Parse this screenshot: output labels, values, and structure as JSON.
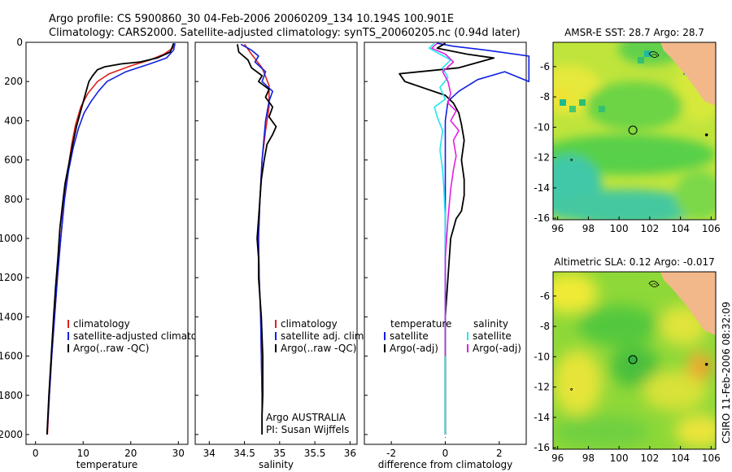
{
  "header": {
    "line1": "Argo profile: CS 5900860_30 04-Feb-2006 20060209_134 10.194S 100.901E",
    "line2": "Climatology: CARS2000. Satellite-adjusted climatology: synTS_20060205.nc (0.94d later)"
  },
  "footer": {
    "stamp": "CSIRO 11-Feb-2006 08:32:09"
  },
  "colors": {
    "red": "#e0201a",
    "blue": "#1020e0",
    "black": "#000000",
    "cyan": "#22e6f0",
    "magenta": "#e020e0"
  },
  "chart_data": [
    {
      "type": "line",
      "name": "temperature-panel",
      "xlabel": "temperature",
      "ylabel": "",
      "xlim": [
        -2,
        32
      ],
      "ylim": [
        2050,
        0
      ],
      "xticks": [
        0,
        10,
        20,
        30
      ],
      "xticklabels": [
        "0",
        "10",
        "20",
        "30"
      ],
      "yticks": [
        0,
        200,
        400,
        600,
        800,
        1000,
        1200,
        1400,
        1600,
        1800,
        2000
      ],
      "yticklabels": [
        "0",
        "200",
        "400",
        "600",
        "800",
        "1000",
        "1200",
        "1400",
        "1600",
        "1800",
        "2000"
      ],
      "legend": [
        "climatology",
        "satellite-adjusted climatology",
        "Argo(..raw -QC)"
      ],
      "legend_colors": [
        "#e0201a",
        "#1020e0",
        "#000000"
      ],
      "series": [
        {
          "name": "climatology",
          "color": "#e0201a",
          "points": [
            [
              29,
              5
            ],
            [
              28.8,
              30
            ],
            [
              27,
              60
            ],
            [
              24,
              90
            ],
            [
              20,
              120
            ],
            [
              15.5,
              160
            ],
            [
              13,
              200
            ],
            [
              11,
              260
            ],
            [
              9.5,
              330
            ],
            [
              8.4,
              420
            ],
            [
              7.6,
              520
            ],
            [
              6.8,
              650
            ],
            [
              6,
              800
            ],
            [
              5.3,
              1000
            ],
            [
              4.6,
              1200
            ],
            [
              4,
              1400
            ],
            [
              3.4,
              1600
            ],
            [
              2.9,
              1800
            ],
            [
              2.5,
              2000
            ]
          ]
        },
        {
          "name": "satellite",
          "color": "#1020e0",
          "points": [
            [
              29.3,
              5
            ],
            [
              29,
              40
            ],
            [
              27.5,
              80
            ],
            [
              24,
              110
            ],
            [
              19,
              150
            ],
            [
              15,
              200
            ],
            [
              13.2,
              250
            ],
            [
              11.7,
              300
            ],
            [
              10.2,
              360
            ],
            [
              9,
              440
            ],
            [
              7.9,
              540
            ],
            [
              6.9,
              660
            ],
            [
              6.1,
              800
            ],
            [
              5.3,
              1000
            ],
            [
              4.6,
              1200
            ],
            [
              4,
              1400
            ],
            [
              3.4,
              1600
            ],
            [
              2.9,
              1800
            ],
            [
              2.4,
              2000
            ]
          ]
        },
        {
          "name": "Argo",
          "color": "#000000",
          "points": [
            [
              29,
              5
            ],
            [
              28.7,
              25
            ],
            [
              28.3,
              50
            ],
            [
              25.5,
              80
            ],
            [
              22,
              100
            ],
            [
              18,
              110
            ],
            [
              14.5,
              125
            ],
            [
              13,
              140
            ],
            [
              12,
              170
            ],
            [
              11.2,
              200
            ],
            [
              10.5,
              260
            ],
            [
              9.6,
              340
            ],
            [
              8.6,
              430
            ],
            [
              7.8,
              520
            ],
            [
              7,
              620
            ],
            [
              6.2,
              720
            ],
            [
              5.7,
              820
            ],
            [
              5.1,
              950
            ],
            [
              4.7,
              1100
            ],
            [
              4.2,
              1250
            ],
            [
              3.8,
              1400
            ],
            [
              3.3,
              1600
            ],
            [
              2.8,
              1800
            ],
            [
              2.4,
              2000
            ]
          ]
        }
      ]
    },
    {
      "type": "line",
      "name": "salinity-panel",
      "xlabel": "salinity",
      "ylabel": "",
      "xlim": [
        33.8,
        36.1
      ],
      "ylim": [
        2050,
        0
      ],
      "xticks": [
        34,
        34.5,
        35,
        35.5,
        36
      ],
      "xticklabels": [
        "34",
        "34.5",
        "35",
        "35.5",
        "36"
      ],
      "legend": [
        "climatology",
        "satellite adj. clim.",
        "Argo(..raw -QC)"
      ],
      "legend_colors": [
        "#e0201a",
        "#1020e0",
        "#000000"
      ],
      "annotation": [
        "Argo AUSTRALIA",
        "PI: Susan Wijffels"
      ],
      "series": [
        {
          "name": "climatology",
          "color": "#e0201a",
          "points": [
            [
              34.5,
              10
            ],
            [
              34.6,
              60
            ],
            [
              34.75,
              130
            ],
            [
              34.85,
              220
            ],
            [
              34.85,
              330
            ],
            [
              34.8,
              450
            ],
            [
              34.75,
              600
            ],
            [
              34.72,
              800
            ],
            [
              34.7,
              1000
            ],
            [
              34.71,
              1200
            ],
            [
              34.73,
              1400
            ],
            [
              34.74,
              1600
            ],
            [
              34.75,
              1800
            ],
            [
              34.75,
              2000
            ]
          ]
        },
        {
          "name": "satellite",
          "color": "#1020e0",
          "points": [
            [
              34.45,
              10
            ],
            [
              34.6,
              40
            ],
            [
              34.7,
              70
            ],
            [
              34.65,
              100
            ],
            [
              34.8,
              150
            ],
            [
              34.75,
              200
            ],
            [
              34.9,
              250
            ],
            [
              34.85,
              300
            ],
            [
              34.8,
              400
            ],
            [
              34.75,
              600
            ],
            [
              34.72,
              800
            ],
            [
              34.7,
              1000
            ],
            [
              34.71,
              1200
            ],
            [
              34.73,
              1400
            ],
            [
              34.74,
              1600
            ],
            [
              34.75,
              1800
            ],
            [
              34.75,
              2000
            ]
          ]
        },
        {
          "name": "Argo",
          "color": "#000000",
          "points": [
            [
              34.4,
              10
            ],
            [
              34.42,
              50
            ],
            [
              34.55,
              90
            ],
            [
              34.6,
              130
            ],
            [
              34.75,
              170
            ],
            [
              34.7,
              200
            ],
            [
              34.85,
              240
            ],
            [
              34.8,
              280
            ],
            [
              34.9,
              330
            ],
            [
              34.85,
              380
            ],
            [
              34.95,
              430
            ],
            [
              34.9,
              470
            ],
            [
              34.82,
              520
            ],
            [
              34.78,
              600
            ],
            [
              34.74,
              700
            ],
            [
              34.72,
              800
            ],
            [
              34.7,
              900
            ],
            [
              34.68,
              1000
            ],
            [
              34.7,
              1100
            ],
            [
              34.7,
              1200
            ],
            [
              34.72,
              1300
            ],
            [
              34.74,
              1400
            ],
            [
              34.75,
              1500
            ],
            [
              34.76,
              1600
            ],
            [
              34.76,
              1700
            ],
            [
              34.76,
              1800
            ],
            [
              34.75,
              1900
            ],
            [
              34.75,
              2000
            ]
          ]
        }
      ]
    },
    {
      "type": "line",
      "name": "difference-panel",
      "xlabel": "difference from climatology",
      "ylabel": "",
      "xlim": [
        -3,
        3
      ],
      "ylim": [
        2050,
        0
      ],
      "xticks": [
        -2,
        0,
        2
      ],
      "xticklabels": [
        "-2",
        "0",
        "2"
      ],
      "legend_headers": [
        "temperature",
        "salinity"
      ],
      "legend": [
        "satellite",
        "Argo(-adj)",
        "satellite",
        "Argo(-adj)"
      ],
      "legend_colors": [
        "#1020e0",
        "#000000",
        "#22e6f0",
        "#e020e0"
      ],
      "series": [
        {
          "name": "temperature satellite",
          "color": "#1020e0",
          "points": [
            [
              -0.3,
              5
            ],
            [
              0.3,
              20
            ],
            [
              1.5,
              40
            ],
            [
              3.1,
              70
            ],
            [
              3.1,
              200
            ],
            [
              2.2,
              150
            ],
            [
              1.2,
              190
            ],
            [
              0.5,
              250
            ],
            [
              0.1,
              300
            ],
            [
              0,
              400
            ],
            [
              0,
              600
            ],
            [
              0,
              1000
            ],
            [
              0,
              1400
            ],
            [
              0,
              2000
            ]
          ]
        },
        {
          "name": "temperature Argo(-adj)",
          "color": "#000000",
          "points": [
            [
              0,
              5
            ],
            [
              -0.3,
              30
            ],
            [
              0.8,
              60
            ],
            [
              1.8,
              80
            ],
            [
              0.5,
              130
            ],
            [
              -1.7,
              160
            ],
            [
              -1.5,
              200
            ],
            [
              0,
              270
            ],
            [
              0.3,
              310
            ],
            [
              0.5,
              360
            ],
            [
              0.6,
              420
            ],
            [
              0.7,
              500
            ],
            [
              0.6,
              600
            ],
            [
              0.7,
              700
            ],
            [
              0.7,
              780
            ],
            [
              0.6,
              860
            ],
            [
              0.4,
              900
            ],
            [
              0.3,
              950
            ],
            [
              0.2,
              1000
            ],
            [
              0.1,
              1200
            ],
            [
              0,
              1400
            ],
            [
              0,
              1600
            ],
            [
              0,
              2000
            ]
          ]
        },
        {
          "name": "salinity satellite",
          "color": "#22e6f0",
          "points": [
            [
              -0.4,
              5
            ],
            [
              -0.6,
              30
            ],
            [
              -0.2,
              60
            ],
            [
              0.2,
              90
            ],
            [
              -0.1,
              130
            ],
            [
              0.1,
              180
            ],
            [
              -0.2,
              230
            ],
            [
              0,
              290
            ],
            [
              -0.4,
              330
            ],
            [
              -0.3,
              380
            ],
            [
              -0.1,
              450
            ],
            [
              -0.2,
              550
            ],
            [
              -0.1,
              650
            ],
            [
              -0.05,
              750
            ],
            [
              0,
              900
            ],
            [
              0,
              1300
            ],
            [
              0,
              2000
            ]
          ]
        },
        {
          "name": "salinity Argo(-adj)",
          "color": "#e020e0",
          "points": [
            [
              -0.3,
              5
            ],
            [
              -0.5,
              30
            ],
            [
              0,
              60
            ],
            [
              0.3,
              100
            ],
            [
              -0.1,
              150
            ],
            [
              0.1,
              200
            ],
            [
              0.2,
              260
            ],
            [
              0.1,
              310
            ],
            [
              0.4,
              350
            ],
            [
              0.2,
              400
            ],
            [
              0.5,
              450
            ],
            [
              0.3,
              500
            ],
            [
              0.4,
              580
            ],
            [
              0.3,
              650
            ],
            [
              0.2,
              750
            ],
            [
              0.1,
              900
            ],
            [
              0,
              1100
            ],
            [
              0,
              1400
            ],
            [
              0,
              1600
            ]
          ]
        }
      ]
    },
    {
      "type": "heatmap",
      "name": "sst-map",
      "title": "AMSR-E SST: 28.7 Argo: 28.7",
      "xlim": [
        95.7,
        106.3
      ],
      "ylim": [
        -16.1,
        -4.4
      ],
      "xticks": [
        96,
        98,
        100,
        102,
        104,
        106
      ],
      "xticklabels": [
        "96",
        "98",
        "100",
        "102",
        "104",
        "106"
      ],
      "yticks": [
        -6,
        -8,
        -10,
        -12,
        -14,
        -16
      ],
      "yticklabels": [
        "-6",
        "-8",
        "-10",
        "-12",
        "-14",
        "-16"
      ],
      "argo_position": [
        100.9,
        -10.19
      ]
    },
    {
      "type": "heatmap",
      "name": "sla-map",
      "title": "Altimetric SLA: 0.12 Argo: -0.017",
      "xlim": [
        95.7,
        106.3
      ],
      "ylim": [
        -16.1,
        -4.4
      ],
      "xticks": [
        96,
        98,
        100,
        102,
        104,
        106
      ],
      "xticklabels": [
        "96",
        "98",
        "100",
        "102",
        "104",
        "106"
      ],
      "yticks": [
        -6,
        -8,
        -10,
        -12,
        -14,
        -16
      ],
      "yticklabels": [
        "-6",
        "-8",
        "-10",
        "-12",
        "-14",
        "-16"
      ],
      "argo_position": [
        100.9,
        -10.19
      ]
    }
  ]
}
